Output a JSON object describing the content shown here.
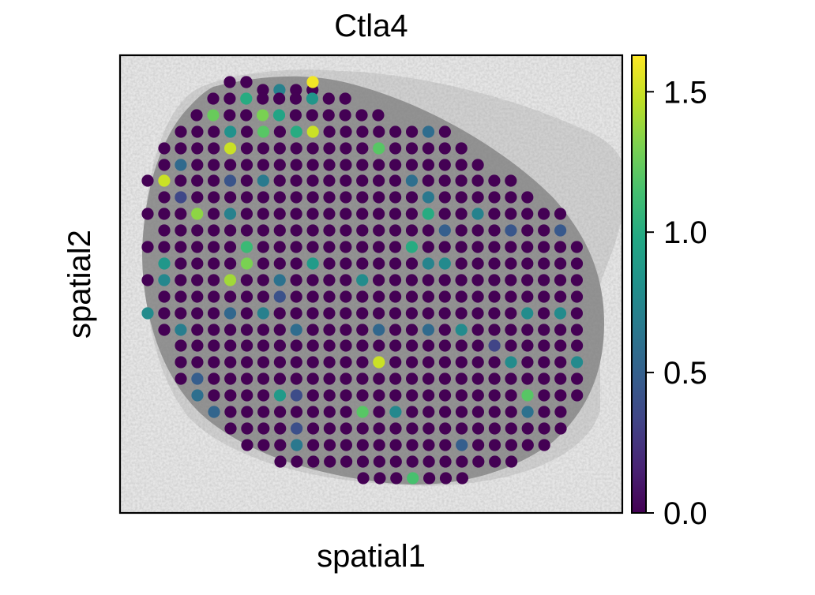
{
  "chart_data": {
    "type": "scatter",
    "title": "Ctla4",
    "xlabel": "spatial1",
    "ylabel": "spatial2",
    "colormap": "viridis",
    "colorbar": {
      "min": 0.0,
      "max": 1.63,
      "ticks": [
        0.0,
        0.5,
        1.0,
        1.5
      ],
      "tick_labels": [
        "0.0",
        "0.5",
        "1.0",
        "1.5"
      ]
    },
    "background": "tissue histology image (grayscale)",
    "grid": false,
    "spot_expression_summary": "most spots ~0.0 (dark purple); scattered spots with values up to ~1.6",
    "high_spots": [
      {
        "row": 1,
        "index": 5,
        "value": 1.6
      },
      {
        "row": 3,
        "index": 4,
        "value": 1.3
      },
      {
        "row": 3,
        "index": 1,
        "value": 1.25
      },
      {
        "row": 2,
        "index": 2,
        "value": 1.0
      },
      {
        "row": 2,
        "index": 6,
        "value": 0.85
      },
      {
        "row": 5,
        "index": 4,
        "value": 1.5
      },
      {
        "row": 5,
        "index": 13,
        "value": 1.2
      },
      {
        "row": 7,
        "index": 1,
        "value": 1.5
      },
      {
        "row": 9,
        "index": 3,
        "value": 1.35
      },
      {
        "row": 12,
        "index": 26,
        "value": 1.4
      },
      {
        "row": 12,
        "index": 5,
        "value": 1.3
      },
      {
        "row": 13,
        "index": 5,
        "value": 1.4
      },
      {
        "row": 18,
        "index": 12,
        "value": 1.5
      },
      {
        "row": 20,
        "index": 20,
        "value": 1.2
      },
      {
        "row": 21,
        "index": 9,
        "value": 1.2
      },
      {
        "row": 25,
        "index": 3,
        "value": 1.15
      },
      {
        "row": 4,
        "index": 8,
        "value": 1.5
      },
      {
        "row": 4,
        "index": 7,
        "value": 1.0
      },
      {
        "row": 4,
        "index": 5,
        "value": 1.2
      },
      {
        "row": 3,
        "index": 5,
        "value": 0.95
      },
      {
        "row": 9,
        "index": 17,
        "value": 1.0
      },
      {
        "row": 11,
        "index": 6,
        "value": 1.1
      },
      {
        "row": 11,
        "index": 16,
        "value": 1.0
      }
    ]
  }
}
